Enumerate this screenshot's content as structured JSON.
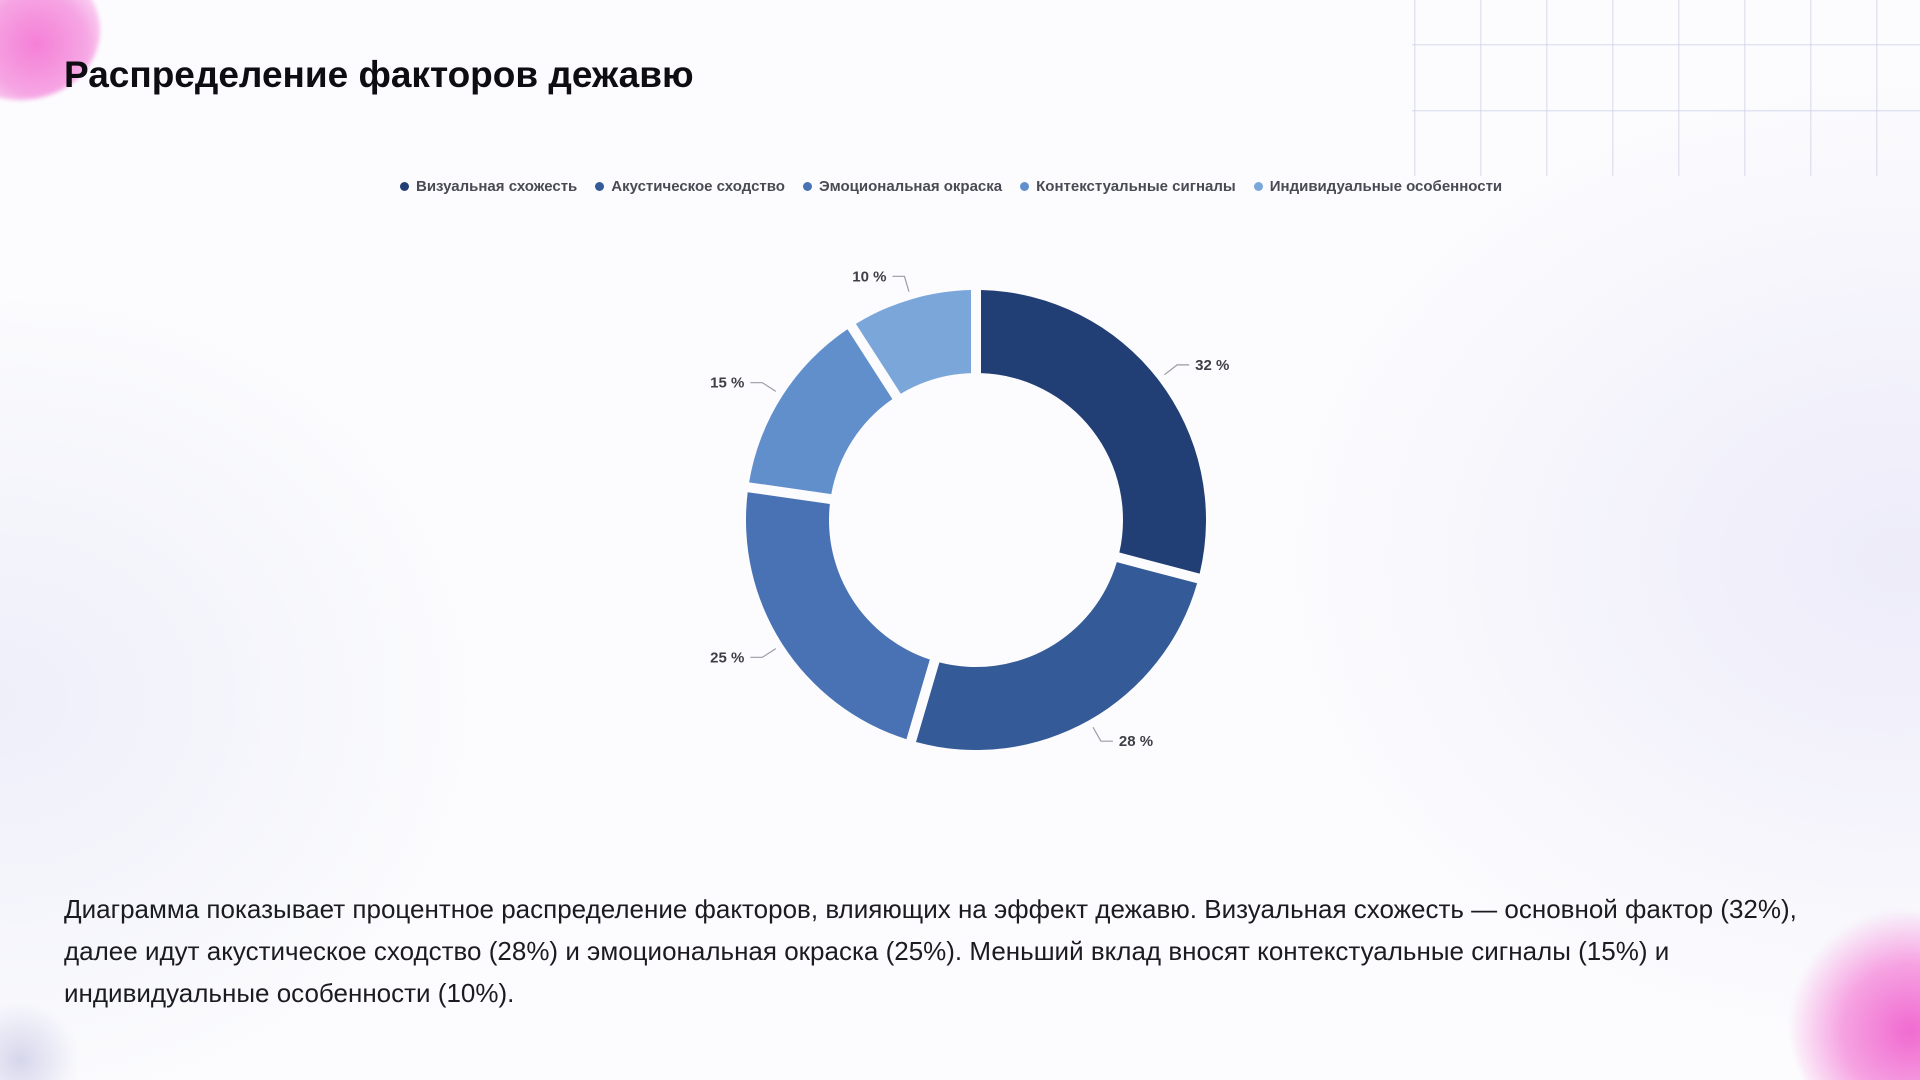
{
  "slide": {
    "title": "Распределение факторов дежавю",
    "description": "Диаграмма показывает процентное распределение факторов, влияющих на эффект дежавю. Визуальная схожесть — основной фактор (32%), далее идут акустическое сходство (28%) и эмоциональная окраска (25%). Меньший вклад вносят контекстуальные сигналы (15%) и индивидуальные особенности (10%)."
  },
  "chart_data": {
    "type": "pie",
    "donut": true,
    "title": "",
    "legend_position": "top",
    "categories": [
      "Визуальная схожесть",
      "Акустическое сходство",
      "Эмоциональная окраска",
      "Контекстуальные сигналы",
      "Индивидуальные особенности"
    ],
    "values": [
      32,
      28,
      25,
      15,
      10
    ],
    "data_labels": [
      "32 %",
      "28 %",
      "25 %",
      "15 %",
      "10 %"
    ],
    "colors": [
      "#223f75",
      "#345b98",
      "#4872b4",
      "#618fcc",
      "#7aa6da"
    ]
  }
}
